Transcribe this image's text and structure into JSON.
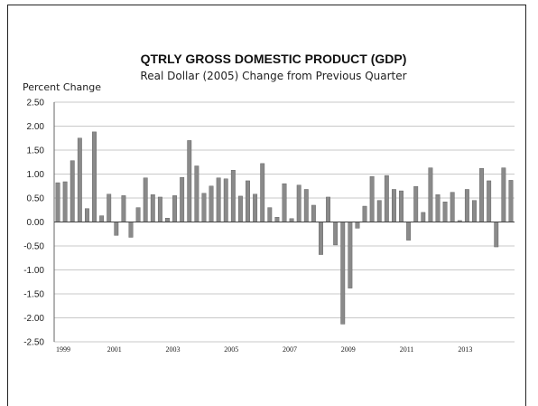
{
  "chart_data": {
    "type": "bar",
    "title": "QTRLY GROSS DOMESTIC PRODUCT (GDP)",
    "subtitle": "Real Dollar (2005) Change from Previous Quarter",
    "ylabel": "Percent Change",
    "xlabel": "",
    "ylim": [
      -2.5,
      2.5
    ],
    "yticks": [
      "2.50",
      "2.00",
      "1.50",
      "1.00",
      "0.50",
      "0.00",
      "-0.50",
      "-1.00",
      "-1.50",
      "-2.00",
      "-2.50"
    ],
    "ytick_values": [
      2.5,
      2.0,
      1.5,
      1.0,
      0.5,
      0.0,
      -0.5,
      -1.0,
      -1.5,
      -2.0,
      -2.5
    ],
    "xtick_labels": [
      "1999",
      "2001",
      "2003",
      "2005",
      "2007",
      "2009",
      "2011",
      "2013"
    ],
    "xtick_quarter_index": [
      0,
      8,
      16,
      24,
      32,
      40,
      48,
      56
    ],
    "grid": "horizontal",
    "bar_color": "#8a8a8a",
    "values": [
      0.82,
      0.84,
      1.28,
      1.75,
      0.28,
      1.88,
      0.13,
      0.58,
      -0.28,
      0.55,
      -0.32,
      0.3,
      0.92,
      0.57,
      0.52,
      0.08,
      0.55,
      0.93,
      1.7,
      1.17,
      0.6,
      0.75,
      0.92,
      0.9,
      1.08,
      0.54,
      0.86,
      0.58,
      1.22,
      0.3,
      0.1,
      0.8,
      0.07,
      0.77,
      0.68,
      0.35,
      -0.68,
      0.52,
      -0.48,
      -2.13,
      -1.38,
      -0.13,
      0.33,
      0.95,
      0.45,
      0.97,
      0.68,
      0.65,
      -0.38,
      0.74,
      0.2,
      1.13,
      0.57,
      0.42,
      0.62,
      0.03,
      0.68,
      0.45,
      1.12,
      0.86,
      -0.52,
      1.13,
      0.87
    ]
  }
}
